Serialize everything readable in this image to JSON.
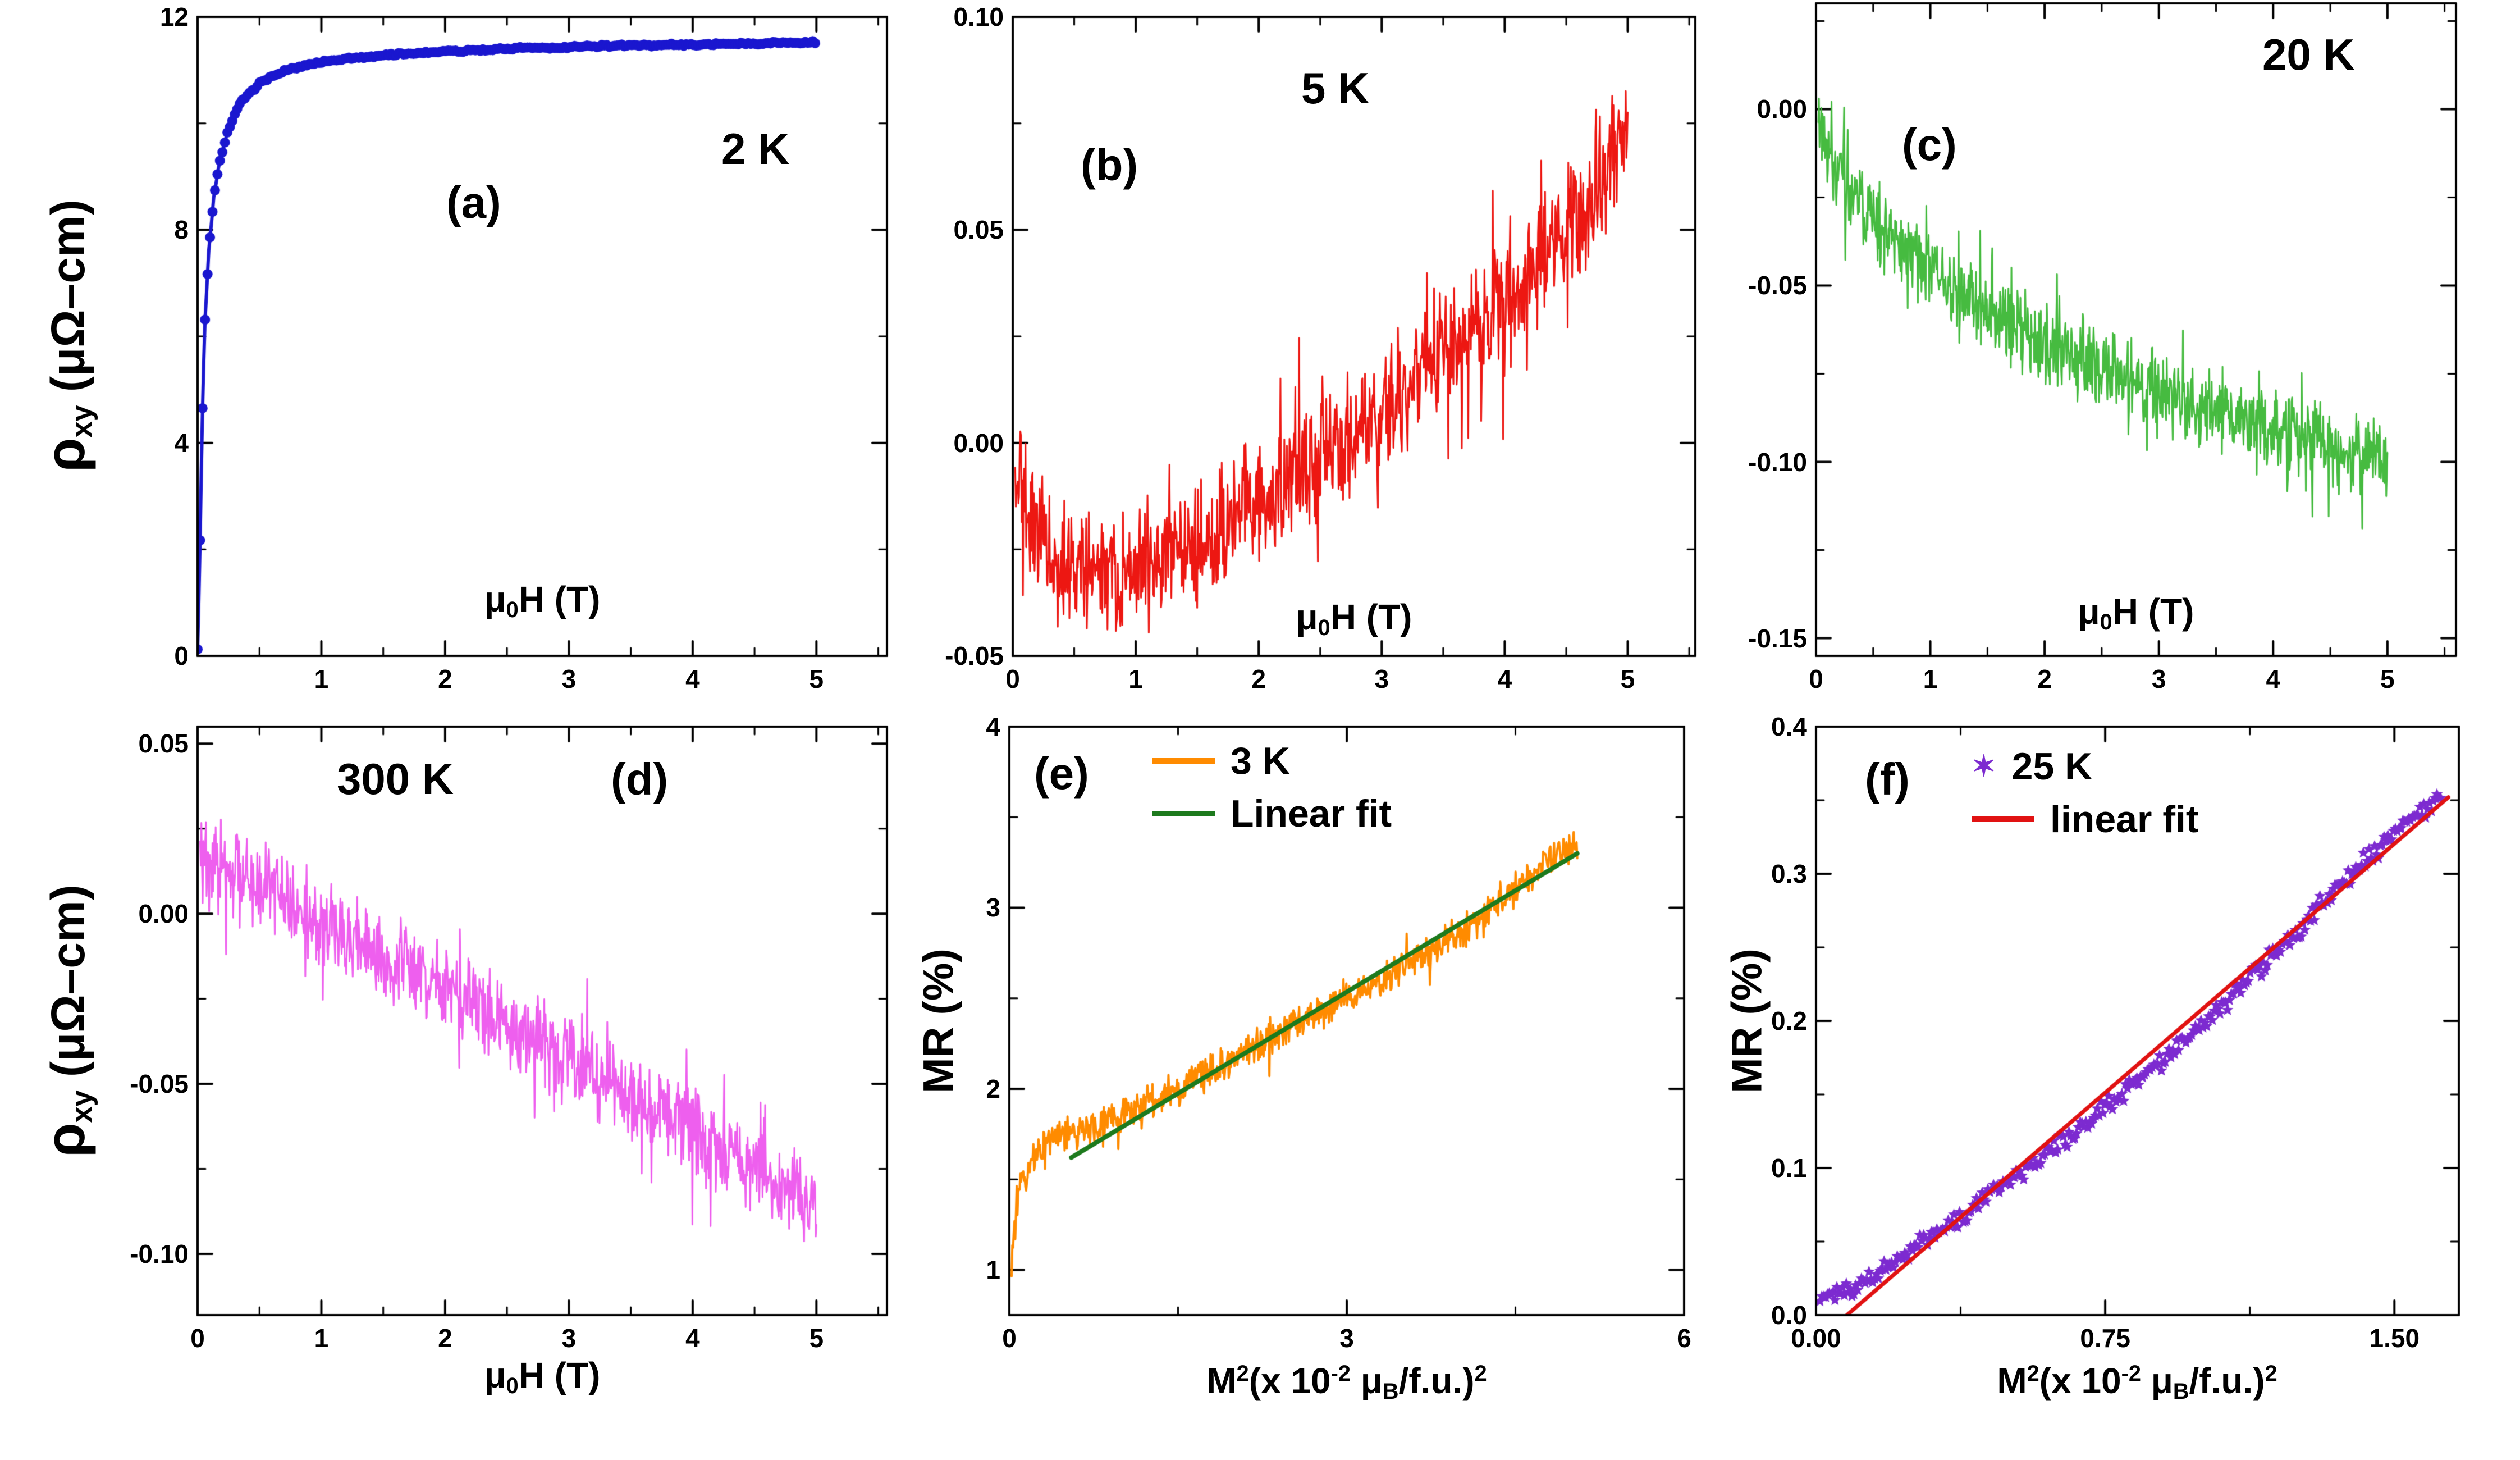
{
  "figure": {
    "background": "#ffffff",
    "frame_color": "#000000"
  },
  "chart_data": [
    {
      "id": "a",
      "type": "scatter",
      "panel_label": "(a)",
      "temp_label": "2 K",
      "xlabel_parts": [
        {
          "t": "μ"
        },
        {
          "t": "0",
          "s": "sub"
        },
        {
          "t": "H (T)"
        }
      ],
      "ylabel_parts": [
        {
          "t": "ρ",
          "cls": "rho"
        },
        {
          "t": "xy",
          "s": "sub"
        },
        {
          "t": " (μΩ–cm)"
        }
      ],
      "x": {
        "min": 0,
        "max": 5.57,
        "ticks": [
          0,
          1,
          2,
          3,
          4,
          5
        ],
        "labels": [
          "",
          "1",
          "2",
          "3",
          "4",
          "5"
        ],
        "minor": 0.5
      },
      "y": {
        "min": 0,
        "max": 12,
        "ticks": [
          0,
          4,
          8,
          12
        ],
        "labels": [
          "0",
          "4",
          "8",
          "12"
        ],
        "minor": 2
      },
      "series": [
        {
          "name": "Hall resistivity 2 K",
          "style": "dotline",
          "color": "#1a17cf",
          "width": 6,
          "marker": 9,
          "noise": 0.03,
          "samples": 500,
          "points": [
            [
              0,
              0.15
            ],
            [
              0.015,
              1.5
            ],
            [
              0.03,
              3.5
            ],
            [
              0.045,
              5.2
            ],
            [
              0.06,
              6.3
            ],
            [
              0.09,
              7.6
            ],
            [
              0.13,
              8.6
            ],
            [
              0.18,
              9.3
            ],
            [
              0.25,
              9.9
            ],
            [
              0.35,
              10.4
            ],
            [
              0.5,
              10.75
            ],
            [
              0.7,
              11.0
            ],
            [
              1.0,
              11.15
            ],
            [
              1.5,
              11.28
            ],
            [
              2.0,
              11.35
            ],
            [
              2.5,
              11.4
            ],
            [
              3.0,
              11.43
            ],
            [
              3.5,
              11.46
            ],
            [
              4.0,
              11.48
            ],
            [
              4.5,
              11.5
            ],
            [
              5.0,
              11.52
            ]
          ]
        }
      ]
    },
    {
      "id": "b",
      "type": "line",
      "panel_label": "(b)",
      "temp_label": "5 K",
      "xlabel_parts": [
        {
          "t": "μ"
        },
        {
          "t": "0",
          "s": "sub"
        },
        {
          "t": "H (T)"
        }
      ],
      "x": {
        "min": 0,
        "max": 5.55,
        "ticks": [
          0,
          1,
          2,
          3,
          4,
          5
        ],
        "labels": [
          "0",
          "1",
          "2",
          "3",
          "4",
          "5"
        ],
        "minor": 0.5
      },
      "y": {
        "min": -0.05,
        "max": 0.1,
        "ticks": [
          -0.05,
          0.0,
          0.05,
          0.1
        ],
        "labels": [
          "-0.05",
          "0.00",
          "0.05",
          "0.10"
        ],
        "minor": 0.025
      },
      "series": [
        {
          "name": "Hall resistivity 5 K",
          "style": "noisy",
          "color": "#ed1712",
          "width": 3,
          "noise": 0.01,
          "samples": 950,
          "points": [
            [
              0.02,
              -0.002
            ],
            [
              0.15,
              -0.018
            ],
            [
              0.35,
              -0.027
            ],
            [
              0.6,
              -0.031
            ],
            [
              0.9,
              -0.03
            ],
            [
              1.2,
              -0.028
            ],
            [
              1.5,
              -0.024
            ],
            [
              1.8,
              -0.018
            ],
            [
              2.0,
              -0.013
            ],
            [
              2.2,
              -0.01
            ],
            [
              2.5,
              -0.004
            ],
            [
              2.8,
              0.002
            ],
            [
              3.1,
              0.01
            ],
            [
              3.4,
              0.018
            ],
            [
              3.7,
              0.026
            ],
            [
              4.0,
              0.034
            ],
            [
              4.3,
              0.043
            ],
            [
              4.6,
              0.053
            ],
            [
              4.8,
              0.062
            ],
            [
              5.0,
              0.075
            ]
          ]
        }
      ]
    },
    {
      "id": "c",
      "type": "line",
      "panel_label": "(c)",
      "temp_label": "20 K",
      "xlabel_parts": [
        {
          "t": "μ"
        },
        {
          "t": "0",
          "s": "sub"
        },
        {
          "t": "H (T)"
        }
      ],
      "x": {
        "min": 0,
        "max": 5.6,
        "ticks": [
          0,
          1,
          2,
          3,
          4,
          5
        ],
        "labels": [
          "0",
          "1",
          "2",
          "3",
          "4",
          "5"
        ],
        "minor": 0.5
      },
      "y": {
        "min": -0.155,
        "max": 0.03,
        "ticks": [
          -0.15,
          -0.1,
          -0.05,
          0.0
        ],
        "labels": [
          "-0.15",
          "-0.10",
          "-0.05",
          "0.00"
        ],
        "minor": 0.025
      },
      "series": [
        {
          "name": "Hall resistivity 20 K",
          "style": "noisy",
          "color": "#46bb40",
          "width": 3,
          "noise": 0.008,
          "samples": 950,
          "points": [
            [
              0.02,
              -0.008
            ],
            [
              0.3,
              -0.022
            ],
            [
              0.6,
              -0.034
            ],
            [
              0.9,
              -0.043
            ],
            [
              1.2,
              -0.051
            ],
            [
              1.5,
              -0.057
            ],
            [
              1.8,
              -0.063
            ],
            [
              2.1,
              -0.068
            ],
            [
              2.4,
              -0.073
            ],
            [
              2.7,
              -0.077
            ],
            [
              3.0,
              -0.081
            ],
            [
              3.3,
              -0.084
            ],
            [
              3.6,
              -0.087
            ],
            [
              3.9,
              -0.09
            ],
            [
              4.2,
              -0.093
            ],
            [
              4.5,
              -0.096
            ],
            [
              4.8,
              -0.099
            ],
            [
              5.0,
              -0.101
            ]
          ]
        }
      ]
    },
    {
      "id": "d",
      "type": "line",
      "panel_label": "(d)",
      "temp_label": "300 K",
      "xlabel_parts": [
        {
          "t": "μ"
        },
        {
          "t": "0",
          "s": "sub"
        },
        {
          "t": "H (T)"
        }
      ],
      "ylabel_parts": [
        {
          "t": "ρ",
          "cls": "rho"
        },
        {
          "t": "xy",
          "s": "sub"
        },
        {
          "t": " (μΩ–cm)"
        }
      ],
      "x": {
        "min": 0,
        "max": 5.57,
        "ticks": [
          0,
          1,
          2,
          3,
          4,
          5
        ],
        "labels": [
          "0",
          "1",
          "2",
          "3",
          "4",
          "5"
        ],
        "minor": 0.5
      },
      "y": {
        "min": -0.118,
        "max": 0.055,
        "ticks": [
          -0.1,
          -0.05,
          0.0,
          0.05
        ],
        "labels": [
          "-0.10",
          "-0.05",
          "0.00",
          "0.05"
        ],
        "minor": 0.025
      },
      "series": [
        {
          "name": "Hall resistivity 300 K",
          "style": "noisy",
          "color": "#ee5fee",
          "width": 3,
          "noise": 0.009,
          "samples": 950,
          "points": [
            [
              0.02,
              0.016
            ],
            [
              0.5,
              0.008
            ],
            [
              1.0,
              -0.002
            ],
            [
              1.5,
              -0.012
            ],
            [
              2.0,
              -0.022
            ],
            [
              2.5,
              -0.032
            ],
            [
              3.0,
              -0.043
            ],
            [
              3.5,
              -0.053
            ],
            [
              4.0,
              -0.064
            ],
            [
              4.5,
              -0.075
            ],
            [
              5.0,
              -0.086
            ]
          ]
        }
      ]
    },
    {
      "id": "e",
      "type": "line",
      "panel_label": "(e)",
      "xlabel_parts": [
        {
          "t": "M"
        },
        {
          "t": "2",
          "s": "sup"
        },
        {
          "t": "(x 10"
        },
        {
          "t": "-2",
          "s": "sup"
        },
        {
          "t": " μ"
        },
        {
          "t": "B",
          "s": "sub"
        },
        {
          "t": "/f.u.)"
        },
        {
          "t": "2",
          "s": "sup"
        }
      ],
      "ylabel_parts": [
        {
          "t": "MR (%)"
        }
      ],
      "legend": [
        {
          "marker": "line",
          "color": "#ff8b00",
          "label": "3 K"
        },
        {
          "marker": "line",
          "color": "#1d7a1d",
          "label": "Linear fit"
        }
      ],
      "x": {
        "min": 0,
        "max": 6,
        "ticks": [
          0,
          3,
          6
        ],
        "labels": [
          "0",
          "3",
          "6"
        ],
        "minor": 1.5
      },
      "y": {
        "min": 0.75,
        "max": 4,
        "ticks": [
          1,
          2,
          3,
          4
        ],
        "labels": [
          "1",
          "2",
          "3",
          "4"
        ],
        "minor": 0.5
      },
      "series": [
        {
          "name": "MR vs M2 at 3 K",
          "style": "noisy",
          "color": "#ff8b00",
          "width": 4,
          "noise": 0.065,
          "samples": 780,
          "points": [
            [
              0.02,
              1.02
            ],
            [
              0.06,
              1.3
            ],
            [
              0.1,
              1.45
            ],
            [
              0.2,
              1.6
            ],
            [
              0.35,
              1.7
            ],
            [
              0.5,
              1.75
            ],
            [
              0.7,
              1.78
            ],
            [
              0.9,
              1.82
            ],
            [
              1.2,
              1.92
            ],
            [
              1.5,
              2.0
            ],
            [
              1.8,
              2.1
            ],
            [
              2.1,
              2.2
            ],
            [
              2.4,
              2.3
            ],
            [
              2.7,
              2.4
            ],
            [
              3.0,
              2.5
            ],
            [
              3.3,
              2.6
            ],
            [
              3.6,
              2.7
            ],
            [
              3.9,
              2.82
            ],
            [
              4.2,
              2.95
            ],
            [
              4.5,
              3.1
            ],
            [
              4.8,
              3.25
            ],
            [
              5.05,
              3.35
            ]
          ]
        },
        {
          "name": "Linear fit",
          "style": "fit",
          "color": "#1d7a1d",
          "width": 8,
          "points": [
            [
              0.55,
              1.62
            ],
            [
              5.05,
              3.3
            ]
          ]
        }
      ]
    },
    {
      "id": "f",
      "type": "scatter",
      "panel_label": "(f)",
      "xlabel_parts": [
        {
          "t": "M"
        },
        {
          "t": "2",
          "s": "sup"
        },
        {
          "t": "(x 10"
        },
        {
          "t": "-2",
          "s": "sup"
        },
        {
          "t": " μ"
        },
        {
          "t": "B",
          "s": "sub"
        },
        {
          "t": "/f.u.)"
        },
        {
          "t": "2",
          "s": "sup"
        }
      ],
      "ylabel_parts": [
        {
          "t": "MR (%)"
        }
      ],
      "legend": [
        {
          "marker": "star",
          "color": "#7d2bd0",
          "label": "25 K"
        },
        {
          "marker": "line",
          "color": "#e11212",
          "label": "linear fit"
        }
      ],
      "x": {
        "min": 0,
        "max": 1.667,
        "ticks": [
          0,
          0.75,
          1.5
        ],
        "labels": [
          "0.00",
          "0.75",
          "1.50"
        ],
        "minor": 0.375
      },
      "y": {
        "min": 0,
        "max": 0.4,
        "ticks": [
          0,
          0.1,
          0.2,
          0.3,
          0.4
        ],
        "labels": [
          "0.0",
          "0.1",
          "0.2",
          "0.3",
          "0.4"
        ],
        "minor": 0.05
      },
      "series": [
        {
          "name": "MR vs M2 at 25 K",
          "style": "stars",
          "color": "#7d2bd0",
          "marker": 11,
          "noise": 0.005,
          "samples": 330,
          "points": [
            [
              0.01,
              0.012
            ],
            [
              0.05,
              0.013
            ],
            [
              0.1,
              0.018
            ],
            [
              0.17,
              0.03
            ],
            [
              0.25,
              0.045
            ],
            [
              0.35,
              0.063
            ],
            [
              0.45,
              0.082
            ],
            [
              0.55,
              0.1
            ],
            [
              0.65,
              0.12
            ],
            [
              0.75,
              0.142
            ],
            [
              0.85,
              0.163
            ],
            [
              0.95,
              0.185
            ],
            [
              1.05,
              0.21
            ],
            [
              1.15,
              0.235
            ],
            [
              1.25,
              0.262
            ],
            [
              1.35,
              0.29
            ],
            [
              1.45,
              0.315
            ],
            [
              1.55,
              0.34
            ],
            [
              1.62,
              0.352
            ]
          ]
        },
        {
          "name": "linear fit",
          "style": "fit",
          "color": "#e11212",
          "width": 7,
          "points": [
            [
              0.08,
              0.0
            ],
            [
              1.64,
              0.352
            ]
          ]
        }
      ]
    }
  ]
}
